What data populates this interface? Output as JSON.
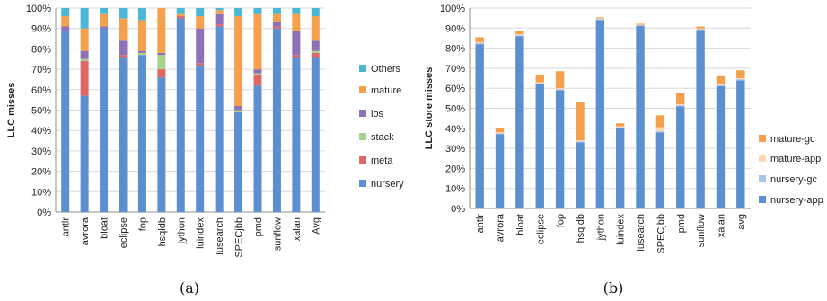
{
  "chart_data": [
    {
      "type": "bar",
      "stacked": true,
      "caption": "(a)",
      "ylabel": "LLC misses",
      "ylim": [
        0,
        100
      ],
      "ytick_labels": [
        "0%",
        "10%",
        "20%",
        "30%",
        "40%",
        "50%",
        "60%",
        "70%",
        "80%",
        "90%",
        "100%"
      ],
      "legend_position": "right",
      "grid": true,
      "categories": [
        "antlr",
        "avrora",
        "bloat",
        "eclipse",
        "fop",
        "hsqldb",
        "jython",
        "luindex",
        "lusearch",
        "SPECjbb",
        "pmd",
        "sunflow",
        "xalan",
        "Avg"
      ],
      "series": [
        {
          "name": "nursery",
          "color": "#5b8fcf",
          "values": [
            89,
            57,
            90,
            76,
            77,
            66,
            95,
            72,
            91,
            49,
            62,
            90,
            76,
            76
          ]
        },
        {
          "name": "meta",
          "color": "#e06666",
          "values": [
            0,
            17,
            0,
            1,
            0,
            4,
            1,
            1,
            1,
            0,
            5,
            1,
            1,
            2
          ]
        },
        {
          "name": "stack",
          "color": "#a9d18e",
          "values": [
            0,
            1,
            0,
            0,
            1,
            7,
            0,
            0,
            0,
            1,
            1,
            0,
            0,
            1
          ]
        },
        {
          "name": "los",
          "color": "#8e72b8",
          "values": [
            2,
            4,
            1,
            7,
            1,
            1,
            0,
            17,
            5,
            2,
            2,
            2,
            12,
            5
          ]
        },
        {
          "name": "mature",
          "color": "#f5a04d",
          "values": [
            5,
            11,
            6,
            11,
            15,
            22,
            1,
            6,
            2,
            44,
            27,
            4,
            8,
            12
          ]
        },
        {
          "name": "Others",
          "color": "#4cb6d6",
          "values": [
            4,
            10,
            3,
            5,
            6,
            0,
            3,
            4,
            1,
            4,
            3,
            3,
            3,
            4
          ]
        }
      ]
    },
    {
      "type": "bar",
      "stacked": true,
      "caption": "(b)",
      "ylabel": "LLC store misses",
      "ylim": [
        0,
        100
      ],
      "ytick_labels": [
        "0%",
        "10%",
        "20%",
        "30%",
        "40%",
        "50%",
        "60%",
        "70%",
        "80%",
        "90%",
        "100%"
      ],
      "legend_position": "right",
      "grid": true,
      "categories": [
        "antlr",
        "avrora",
        "bloat",
        "eclipse",
        "fop",
        "hsqldb",
        "jython",
        "luindex",
        "lusearch",
        "SPECjbb",
        "pmd",
        "sunflow",
        "xalan",
        "avg"
      ],
      "series": [
        {
          "name": "nursery-app",
          "color": "#5b8fcf",
          "values": [
            82,
            37,
            86,
            62,
            59,
            33,
            94,
            40,
            91,
            38,
            51,
            89,
            61,
            64
          ]
        },
        {
          "name": "nursery-gc",
          "color": "#a9c4e6",
          "values": [
            0.5,
            0.5,
            0.5,
            0.5,
            0.5,
            0.5,
            0.5,
            0.5,
            0.5,
            0.5,
            0.5,
            0.5,
            0.5,
            0.5
          ]
        },
        {
          "name": "mature-app",
          "color": "#fbd9b4",
          "values": [
            0.5,
            0.5,
            0.5,
            0.5,
            0.5,
            0.5,
            0.3,
            0.5,
            0.2,
            2,
            0.5,
            0.3,
            0.5,
            0.5
          ]
        },
        {
          "name": "mature-gc",
          "color": "#f5a04d",
          "values": [
            2.5,
            2,
            1.5,
            3.5,
            8.5,
            19,
            0.5,
            1.5,
            0.5,
            6,
            5.5,
            1,
            4,
            4
          ]
        }
      ]
    }
  ]
}
